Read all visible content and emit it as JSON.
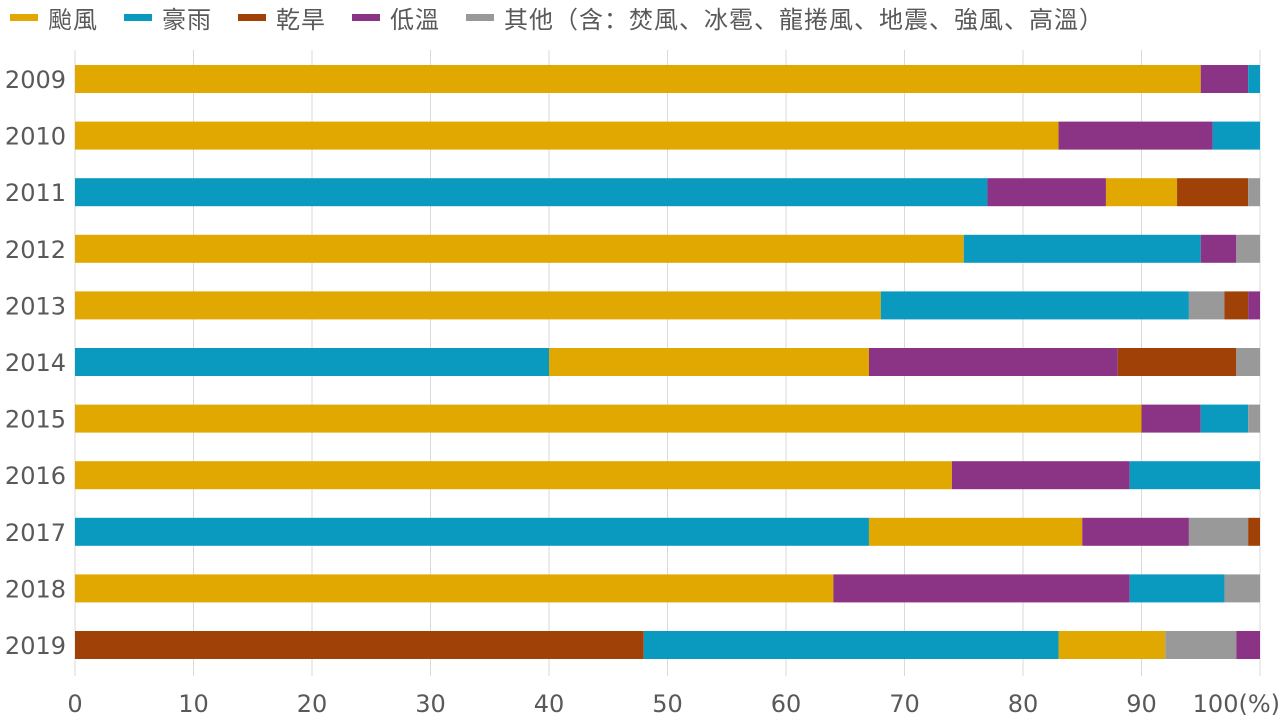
{
  "chart_data": {
    "type": "bar",
    "orientation": "horizontal",
    "stacked": true,
    "title": "",
    "xlabel": "",
    "ylabel": "",
    "xlim": [
      0,
      100
    ],
    "x_unit": "(%)",
    "x_ticks": [
      "0",
      "10",
      "20",
      "30",
      "40",
      "50",
      "60",
      "70",
      "80",
      "90",
      "100(%)"
    ],
    "categories": [
      "2009",
      "2010",
      "2011",
      "2012",
      "2013",
      "2014",
      "2015",
      "2016",
      "2017",
      "2018",
      "2019"
    ],
    "legend_position": "top",
    "grid": true,
    "series": [
      {
        "name": "颱風",
        "color": "#E0A800"
      },
      {
        "name": "豪雨",
        "color": "#0A9AC0"
      },
      {
        "name": "乾旱",
        "color": "#A04208"
      },
      {
        "name": "低溫",
        "color": "#8B3385"
      },
      {
        "name": "其他（含：焚風、冰雹、龍捲風、地震、強風、高溫）",
        "color": "#999999"
      }
    ],
    "bars": [
      {
        "year": "2009",
        "segments": [
          {
            "series": "颱風",
            "value": 95
          },
          {
            "series": "低溫",
            "value": 4
          },
          {
            "series": "豪雨",
            "value": 1
          }
        ]
      },
      {
        "year": "2010",
        "segments": [
          {
            "series": "颱風",
            "value": 83
          },
          {
            "series": "低溫",
            "value": 13
          },
          {
            "series": "豪雨",
            "value": 4
          }
        ]
      },
      {
        "year": "2011",
        "segments": [
          {
            "series": "豪雨",
            "value": 77
          },
          {
            "series": "低溫",
            "value": 10
          },
          {
            "series": "颱風",
            "value": 6
          },
          {
            "series": "乾旱",
            "value": 6
          },
          {
            "series": "其他（含：焚風、冰雹、龍捲風、地震、強風、高溫）",
            "value": 1
          }
        ]
      },
      {
        "year": "2012",
        "segments": [
          {
            "series": "颱風",
            "value": 75
          },
          {
            "series": "豪雨",
            "value": 20
          },
          {
            "series": "低溫",
            "value": 3
          },
          {
            "series": "其他（含：焚風、冰雹、龍捲風、地震、強風、高溫）",
            "value": 2
          }
        ]
      },
      {
        "year": "2013",
        "segments": [
          {
            "series": "颱風",
            "value": 68
          },
          {
            "series": "豪雨",
            "value": 26
          },
          {
            "series": "其他（含：焚風、冰雹、龍捲風、地震、強風、高溫）",
            "value": 3
          },
          {
            "series": "乾旱",
            "value": 2
          },
          {
            "series": "低溫",
            "value": 1
          }
        ]
      },
      {
        "year": "2014",
        "segments": [
          {
            "series": "豪雨",
            "value": 40
          },
          {
            "series": "颱風",
            "value": 27
          },
          {
            "series": "低溫",
            "value": 21
          },
          {
            "series": "乾旱",
            "value": 10
          },
          {
            "series": "其他（含：焚風、冰雹、龍捲風、地震、強風、高溫）",
            "value": 2
          }
        ]
      },
      {
        "year": "2015",
        "segments": [
          {
            "series": "颱風",
            "value": 90
          },
          {
            "series": "低溫",
            "value": 5
          },
          {
            "series": "豪雨",
            "value": 4
          },
          {
            "series": "其他（含：焚風、冰雹、龍捲風、地震、強風、高溫）",
            "value": 1
          }
        ]
      },
      {
        "year": "2016",
        "segments": [
          {
            "series": "颱風",
            "value": 74
          },
          {
            "series": "低溫",
            "value": 15
          },
          {
            "series": "豪雨",
            "value": 11
          }
        ]
      },
      {
        "year": "2017",
        "segments": [
          {
            "series": "豪雨",
            "value": 67
          },
          {
            "series": "颱風",
            "value": 18
          },
          {
            "series": "低溫",
            "value": 9
          },
          {
            "series": "其他（含：焚風、冰雹、龍捲風、地震、強風、高溫）",
            "value": 5
          },
          {
            "series": "乾旱",
            "value": 1
          }
        ]
      },
      {
        "year": "2018",
        "segments": [
          {
            "series": "颱風",
            "value": 64
          },
          {
            "series": "低溫",
            "value": 25
          },
          {
            "series": "豪雨",
            "value": 8
          },
          {
            "series": "其他（含：焚風、冰雹、龍捲風、地震、強風、高溫）",
            "value": 3
          }
        ]
      },
      {
        "year": "2019",
        "segments": [
          {
            "series": "乾旱",
            "value": 48
          },
          {
            "series": "豪雨",
            "value": 35
          },
          {
            "series": "颱風",
            "value": 9
          },
          {
            "series": "其他（含：焚風、冰雹、龍捲風、地震、強風、高溫）",
            "value": 6
          },
          {
            "series": "低溫",
            "value": 2
          }
        ]
      }
    ]
  }
}
